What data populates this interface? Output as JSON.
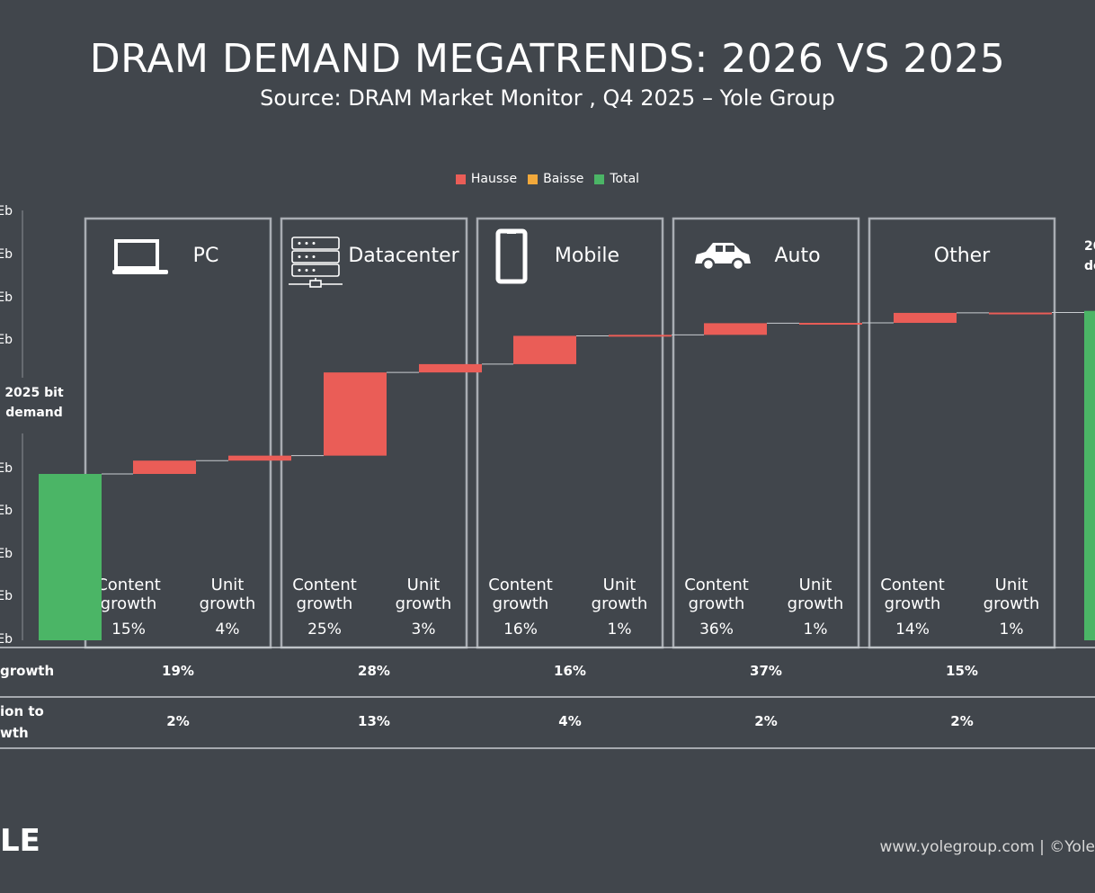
{
  "header": {
    "title": "DRAM DEMAND MEGATRENDS: 2026 VS 2025",
    "subtitle": "Source: DRAM Market Monitor , Q4 2025 – Yole Group"
  },
  "legend": [
    {
      "label": "Hausse",
      "color": "#ea5d57"
    },
    {
      "label": "Baisse",
      "color": "#f2a93b"
    },
    {
      "label": "Total",
      "color": "#4bb566"
    }
  ],
  "colors": {
    "increase": "#ea5d57",
    "decrease": "#f2a93b",
    "total": "#4bb566",
    "panel_border": "#a9adb3",
    "background": "#41464c"
  },
  "chart_data": {
    "type": "bar",
    "subtype": "waterfall",
    "title": "DRAM DEMAND MEGATRENDS: 2026 VS 2025",
    "y_tick_suffix": "Eb",
    "start_label": [
      "2025 bit",
      "demand"
    ],
    "end_label": [
      "20",
      "de"
    ],
    "y_units": "relative (2025 bit demand = 100)",
    "steps": [
      {
        "type": "total",
        "value": 100
      },
      {
        "type": "increase",
        "category": "PC",
        "driver": "Content growth",
        "value": 8
      },
      {
        "type": "increase",
        "category": "PC",
        "driver": "Unit growth",
        "value": 3
      },
      {
        "type": "increase",
        "category": "Datacenter",
        "driver": "Content growth",
        "value": 50
      },
      {
        "type": "increase",
        "category": "Datacenter",
        "driver": "Unit growth",
        "value": 5
      },
      {
        "type": "increase",
        "category": "Mobile",
        "driver": "Content growth",
        "value": 17
      },
      {
        "type": "increase",
        "category": "Mobile",
        "driver": "Unit growth",
        "value": 0.6
      },
      {
        "type": "increase",
        "category": "Auto",
        "driver": "Content growth",
        "value": 7
      },
      {
        "type": "increase",
        "category": "Auto",
        "driver": "Unit growth",
        "value": 0.2
      },
      {
        "type": "increase",
        "category": "Other",
        "driver": "Content growth",
        "value": 6
      },
      {
        "type": "increase",
        "category": "Other",
        "driver": "Unit growth",
        "value": 0.2
      },
      {
        "type": "total",
        "value": 198
      }
    ],
    "segments": [
      {
        "name": "PC",
        "icon": "laptop-icon",
        "drivers": [
          {
            "label": [
              "Content",
              "growth"
            ],
            "pct": "15%"
          },
          {
            "label": [
              "Unit",
              "growth"
            ],
            "pct": "4%"
          }
        ],
        "growth": "19%",
        "contribution": "2%"
      },
      {
        "name": "Datacenter",
        "icon": "server-icon",
        "drivers": [
          {
            "label": [
              "Content",
              "growth"
            ],
            "pct": "25%"
          },
          {
            "label": [
              "Unit",
              "growth"
            ],
            "pct": "3%"
          }
        ],
        "growth": "28%",
        "contribution": "13%"
      },
      {
        "name": "Mobile",
        "icon": "smartphone-icon",
        "drivers": [
          {
            "label": [
              "Content",
              "growth"
            ],
            "pct": "16%"
          },
          {
            "label": [
              "Unit",
              "growth"
            ],
            "pct": "1%"
          }
        ],
        "growth": "16%",
        "contribution": "4%"
      },
      {
        "name": "Auto",
        "icon": "car-icon",
        "drivers": [
          {
            "label": [
              "Content",
              "growth"
            ],
            "pct": "36%"
          },
          {
            "label": [
              "Unit",
              "growth"
            ],
            "pct": "1%"
          }
        ],
        "growth": "37%",
        "contribution": "2%"
      },
      {
        "name": "Other",
        "icon": "",
        "drivers": [
          {
            "label": [
              "Content",
              "growth"
            ],
            "pct": "14%"
          },
          {
            "label": [
              "Unit",
              "growth"
            ],
            "pct": "1%"
          }
        ],
        "growth": "15%",
        "contribution": "2%"
      }
    ],
    "table_rows": [
      {
        "label": [
          "growth"
        ]
      },
      {
        "label": [
          "ion to",
          "wth"
        ]
      }
    ]
  },
  "footer": {
    "url": "www.yolegroup.com | ©Yole",
    "logo": "LE"
  }
}
